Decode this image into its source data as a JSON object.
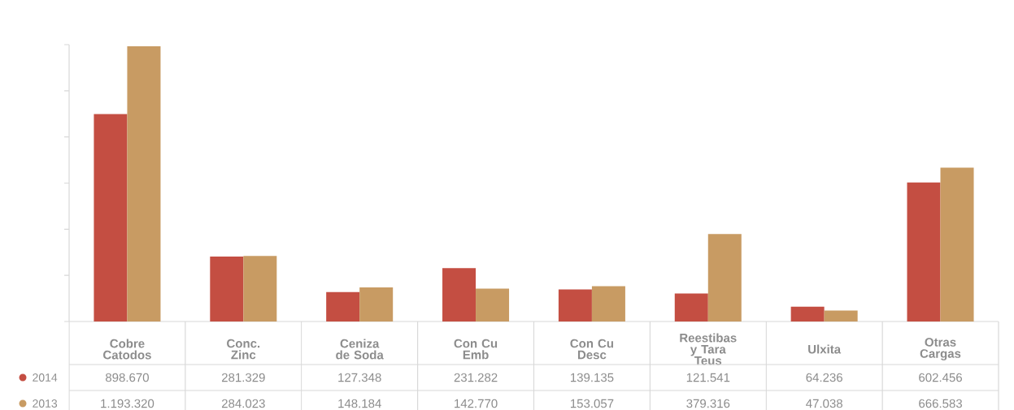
{
  "chart_data": {
    "type": "bar",
    "categories": [
      "Cobre Catodos",
      "Conc. Zinc",
      "Ceniza de Soda",
      "Con Cu Emb",
      "Con Cu Desc",
      "Reestibas y Tara Teus",
      "Ulxita",
      "Otras Cargas"
    ],
    "series": [
      {
        "name": "2014",
        "color": "#c44e42",
        "values": [
          898670,
          281329,
          127348,
          231282,
          139135,
          121541,
          64236,
          602456
        ],
        "value_labels": [
          "898.670",
          "281.329",
          "127.348",
          "231.282",
          "139.135",
          "121.541",
          "64.236",
          "602.456"
        ]
      },
      {
        "name": "2013",
        "color": "#c89b63",
        "values": [
          1193320,
          284023,
          148184,
          142770,
          153057,
          379316,
          47038,
          666583
        ],
        "value_labels": [
          "1.193.320",
          "284.023",
          "148.184",
          "142.770",
          "153.057",
          "379.316",
          "47.038",
          "666.583"
        ]
      }
    ],
    "ylim": [
      0,
      1200000
    ],
    "yticks": [
      {
        "value": 0,
        "label": null
      },
      {
        "value": 200000,
        "label": null
      },
      {
        "value": 400000,
        "label": null
      },
      {
        "value": 600000,
        "label": null
      },
      {
        "value": 800000,
        "label": null
      },
      {
        "value": 1000000,
        "label": null
      },
      {
        "value": 1200000,
        "label": null
      }
    ],
    "tick_labels": "x",
    "grid": false,
    "legend": "left"
  }
}
